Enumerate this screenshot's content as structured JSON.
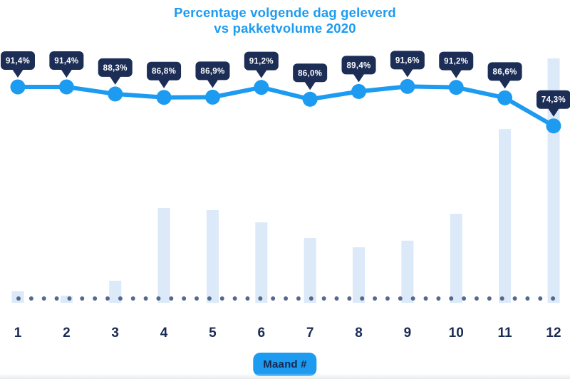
{
  "chart_data": {
    "type": "combo: line (percentage) over bar (volume)",
    "title": "Percentage volgende dag geleverd vs pakketvolume 2020",
    "title_lines": [
      "Percentage volgende dag geleverd",
      "vs pakketvolume 2020"
    ],
    "xlabel": "Maand #",
    "categories": [
      "1",
      "2",
      "3",
      "4",
      "5",
      "6",
      "7",
      "8",
      "9",
      "10",
      "11",
      "12"
    ],
    "series": [
      {
        "name": "Percentage volgende dag geleverd",
        "type": "line",
        "unit": "%",
        "values": [
          91.4,
          91.4,
          88.3,
          86.8,
          86.9,
          91.2,
          86.0,
          89.4,
          91.6,
          91.2,
          86.6,
          74.3
        ],
        "labels": [
          "91,4%",
          "91,4%",
          "88,3%",
          "86,8%",
          "86,9%",
          "91,2%",
          "86,0%",
          "89,4%",
          "91,6%",
          "91,2%",
          "86,6%",
          "74,3%"
        ]
      },
      {
        "name": "Pakketvolume 2020",
        "type": "bar",
        "unit": "relative index estimated from bar heights (December = 100); no value axis shown",
        "values": [
          4.7,
          2.9,
          9.0,
          38.8,
          37.9,
          32.9,
          26.5,
          22.7,
          25.4,
          36.4,
          71.1,
          100
        ]
      }
    ],
    "legend": "none",
    "grid": "off",
    "baseline_style": "dotted row at zero line"
  },
  "colors": {
    "accent_blue": "#1d9bf0",
    "callout_navy": "#1c2d56",
    "callout_text": "#ffffff",
    "bar_fill": "#dbe9f8",
    "baseline_dot": "#55698f",
    "axis_label_navy": "#1a2b55",
    "badge_text_navy": "#16284f",
    "background": "#ffffff"
  }
}
